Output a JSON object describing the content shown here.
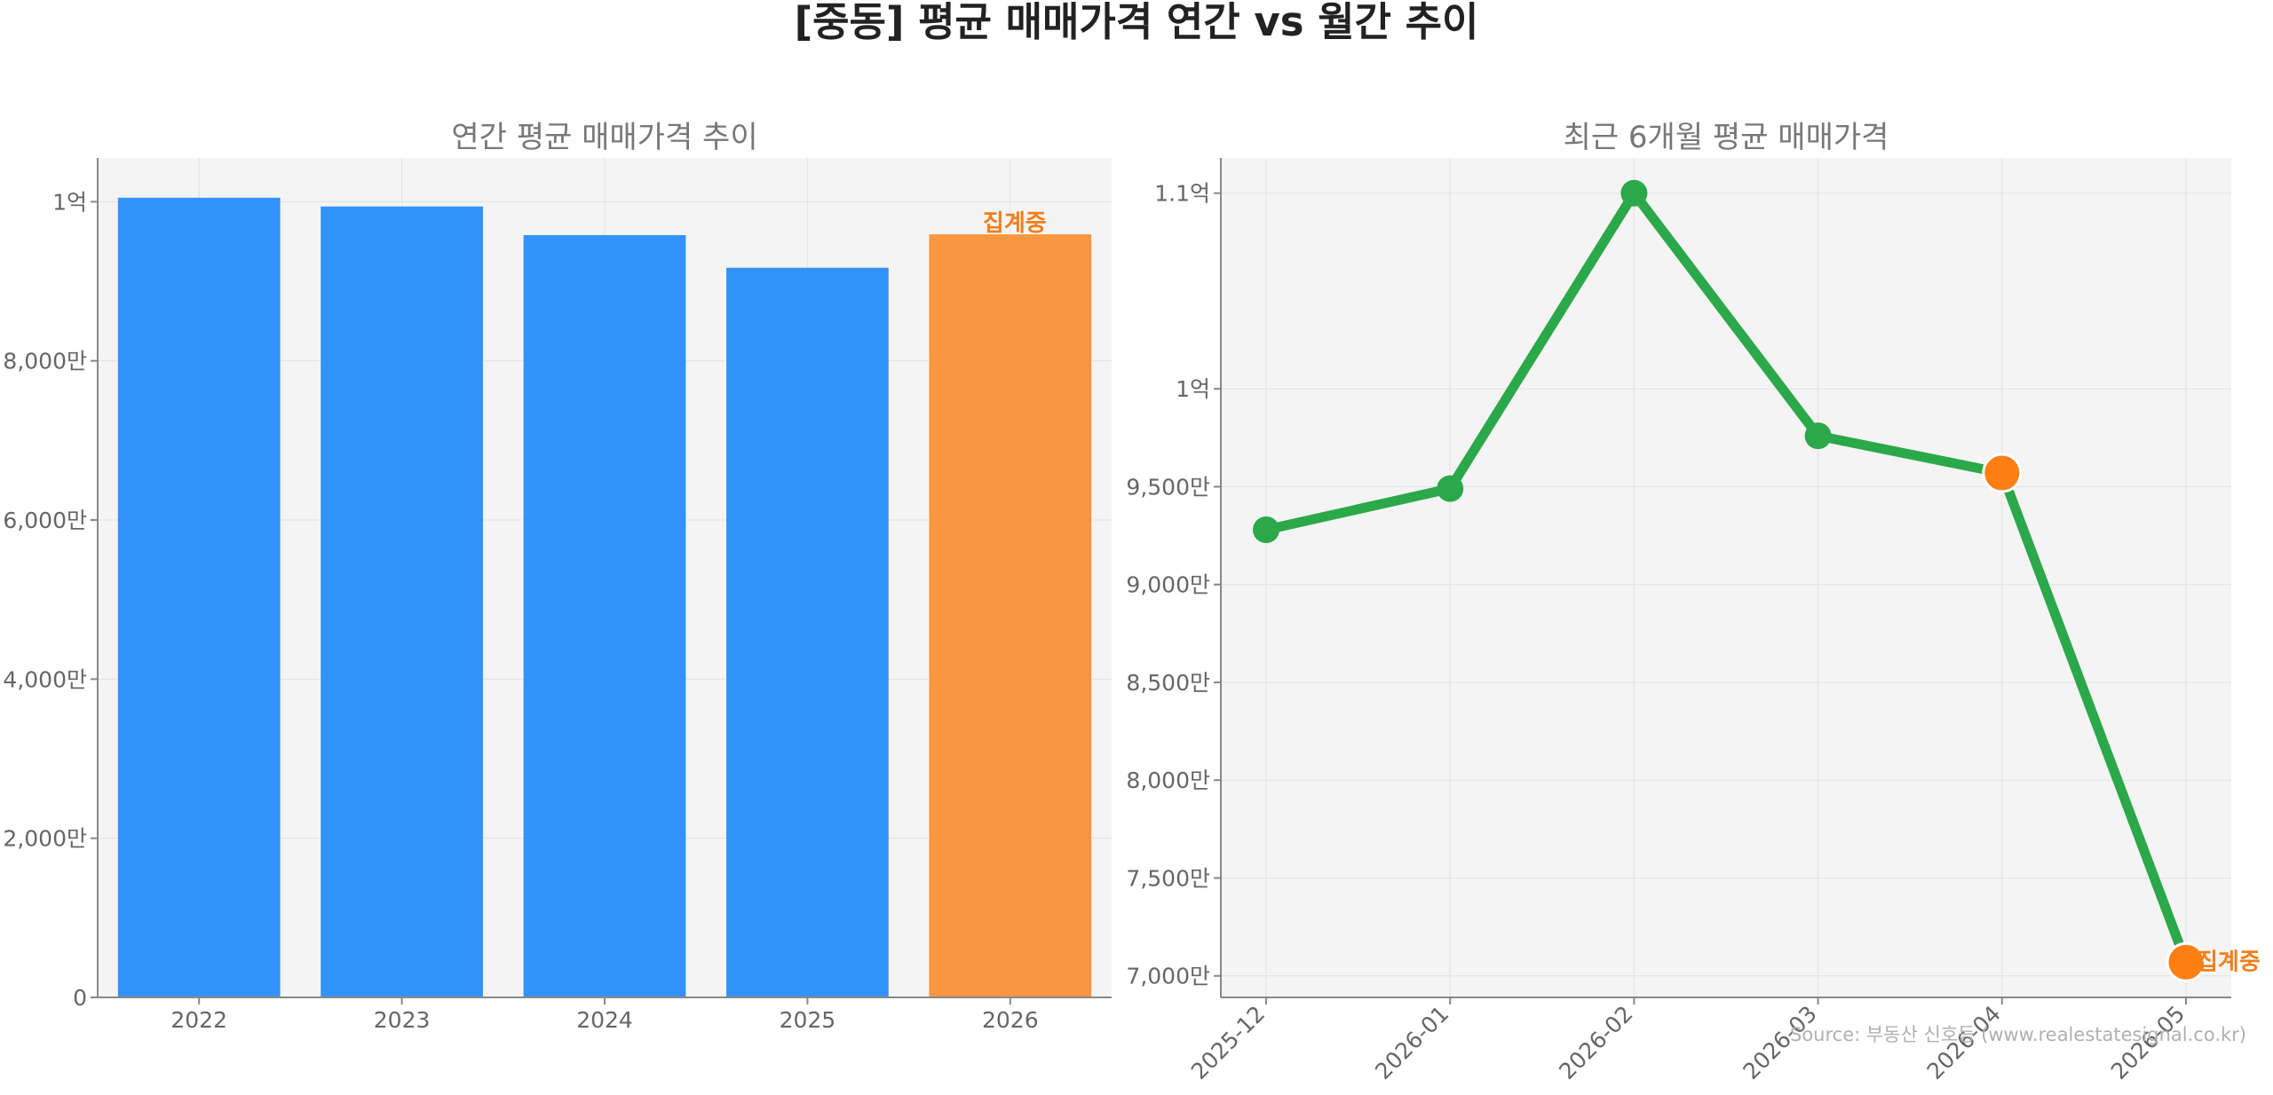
{
  "figure": {
    "title": "[중동] 평균 매매가격 연간 vs 월간 추이",
    "source": "Source: 부동산 신호등 (www.realestatesignal.co.kr)"
  },
  "colors": {
    "bar_complete": "#3193fb",
    "bar_in_progress": "#f99640",
    "line": "#2ba84a",
    "highlight_marker": "#fd7f14",
    "in_progress_label": "#f07f1c",
    "plot_bg": "#f4f4f4"
  },
  "chart_data": [
    {
      "type": "bar",
      "title": "연간 평균 매매가격 추이",
      "xlabel": "",
      "ylabel": "",
      "categories": [
        "2022",
        "2023",
        "2024",
        "2025",
        "2026"
      ],
      "values": [
        100500000,
        99400000,
        95800000,
        91700000,
        95900000
      ],
      "ylim": [
        0,
        105500000
      ],
      "yticks": [
        0,
        20000000,
        40000000,
        60000000,
        80000000,
        100000000
      ],
      "ytick_labels": [
        "0",
        "2,000만",
        "4,000만",
        "6,000만",
        "8,000만",
        "1억"
      ],
      "in_progress_index": 4,
      "annotation": "집계중",
      "grid": true
    },
    {
      "type": "line",
      "title": "최근 6개월 평균 매매가격",
      "xlabel": "",
      "ylabel": "",
      "x": [
        "2025-12",
        "2026-01",
        "2026-02",
        "2026-03",
        "2026-04",
        "2026-05"
      ],
      "values": [
        92800000,
        94900000,
        110000000,
        97600000,
        95700000,
        70700000
      ],
      "ylim": [
        68900000,
        111800000
      ],
      "yticks": [
        70000000,
        75000000,
        80000000,
        85000000,
        90000000,
        95000000,
        100000000,
        110000000
      ],
      "ytick_labels": [
        "7,000만",
        "7,500만",
        "8,000만",
        "8,500만",
        "9,000만",
        "9,500만",
        "1억",
        "1.1억"
      ],
      "highlight_indices": [
        4,
        5
      ],
      "annotation": "집계중",
      "annotation_index": 5,
      "grid": true
    }
  ]
}
